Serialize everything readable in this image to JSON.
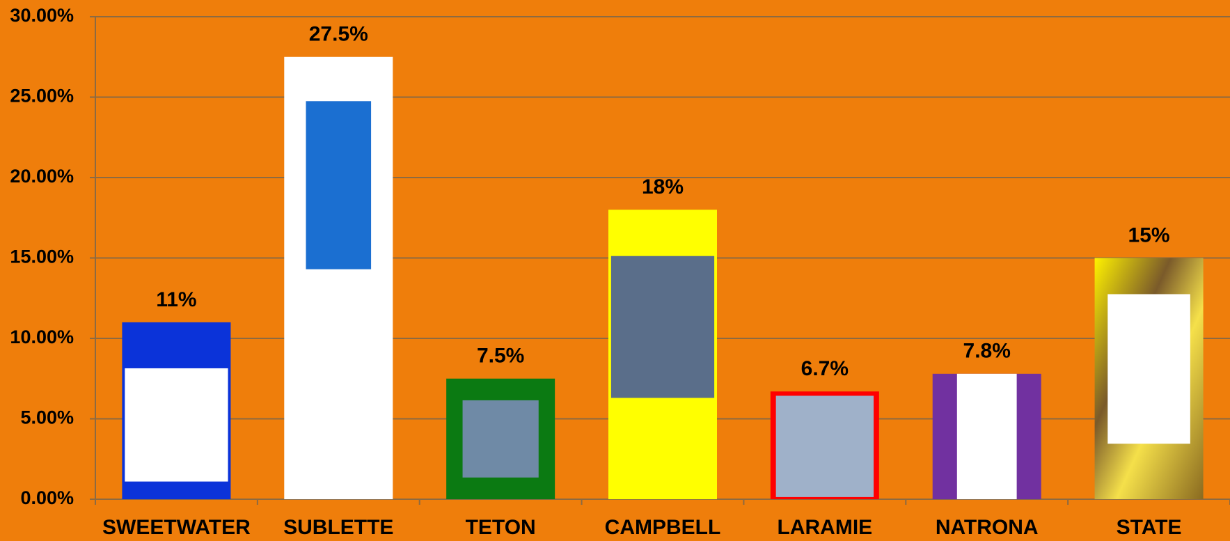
{
  "chart_data": {
    "type": "bar",
    "categories": [
      "SWEETWATER",
      "SUBLETTE",
      "TETON",
      "CAMPBELL",
      "LARAMIE",
      "NATRONA",
      "STATE"
    ],
    "values": [
      11,
      27.5,
      7.5,
      18,
      6.7,
      7.8,
      15
    ],
    "value_labels": [
      "11%",
      "27.5%",
      "7.5%",
      "18%",
      "6.7%",
      "7.8%",
      "15%"
    ],
    "colors": [
      "#0b33d9",
      "#ffffff",
      "#0b7a12",
      "#ffff00",
      "#ff0000",
      "#7131a0",
      "#c9a21a"
    ],
    "ylim": [
      0,
      30
    ],
    "yticks": [
      {
        "value": 0,
        "label": "0.00%"
      },
      {
        "value": 5,
        "label": "5.00%"
      },
      {
        "value": 10,
        "label": "10.00%"
      },
      {
        "value": 15,
        "label": "15.00%"
      },
      {
        "value": 20,
        "label": "20.00%"
      },
      {
        "value": 25,
        "label": "25.00%"
      },
      {
        "value": 30,
        "label": "30.00%"
      }
    ],
    "grid": true
  }
}
